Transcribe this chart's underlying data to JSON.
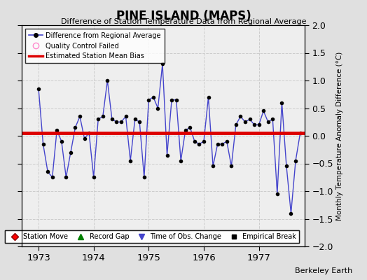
{
  "title": "PINE ISLAND (MAPS)",
  "subtitle": "Difference of Station Temperature Data from Regional Average",
  "ylabel_right": "Monthly Temperature Anomaly Difference (°C)",
  "credit": "Berkeley Earth",
  "xlim": [
    1972.7,
    1977.83
  ],
  "ylim": [
    -2,
    2
  ],
  "yticks": [
    -2,
    -1.5,
    -1,
    -0.5,
    0,
    0.5,
    1,
    1.5,
    2
  ],
  "xticks": [
    1973,
    1974,
    1975,
    1976,
    1977
  ],
  "bias_value": 0.05,
  "background_color": "#e0e0e0",
  "plot_bg_color": "#eeeeee",
  "line_color": "#4444cc",
  "marker_color": "#000000",
  "bias_color": "#dd0000",
  "data_x": [
    1973.0,
    1973.083,
    1973.167,
    1973.25,
    1973.333,
    1973.417,
    1973.5,
    1973.583,
    1973.667,
    1973.75,
    1973.833,
    1973.917,
    1974.0,
    1974.083,
    1974.167,
    1974.25,
    1974.333,
    1974.417,
    1974.5,
    1974.583,
    1974.667,
    1974.75,
    1974.833,
    1974.917,
    1975.0,
    1975.083,
    1975.167,
    1975.25,
    1975.333,
    1975.417,
    1975.5,
    1975.583,
    1975.667,
    1975.75,
    1975.833,
    1975.917,
    1976.0,
    1976.083,
    1976.167,
    1976.25,
    1976.333,
    1976.417,
    1976.5,
    1976.583,
    1976.667,
    1976.75,
    1976.833,
    1976.917,
    1977.0,
    1977.083,
    1977.167,
    1977.25,
    1977.333,
    1977.417,
    1977.5,
    1977.583,
    1977.667,
    1977.75
  ],
  "data_y": [
    0.85,
    -0.15,
    -0.65,
    -0.75,
    0.1,
    -0.1,
    -0.75,
    -0.3,
    0.15,
    0.35,
    -0.05,
    0.05,
    -0.75,
    0.3,
    0.35,
    1.0,
    0.3,
    0.25,
    0.25,
    0.35,
    -0.45,
    0.3,
    0.25,
    -0.75,
    0.65,
    0.7,
    0.5,
    1.3,
    -0.35,
    0.65,
    0.65,
    -0.45,
    0.1,
    0.15,
    -0.1,
    -0.15,
    -0.1,
    0.7,
    -0.55,
    -0.15,
    -0.15,
    -0.1,
    -0.55,
    0.2,
    0.35,
    0.25,
    0.3,
    0.2,
    0.2,
    0.45,
    0.25,
    0.3,
    -1.05,
    0.6,
    -0.55,
    -1.4,
    -0.45,
    0.05
  ]
}
